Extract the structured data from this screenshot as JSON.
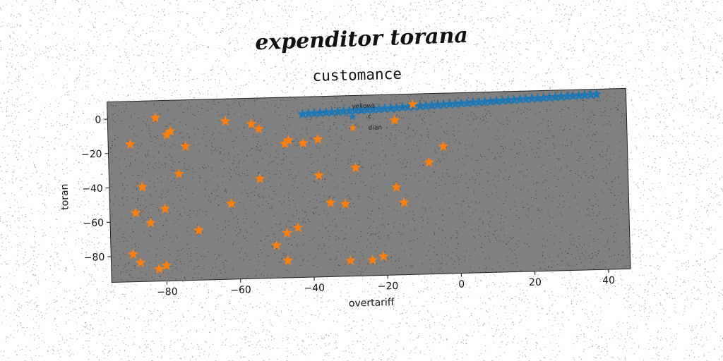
{
  "figure": {
    "suptitle": "expenditor torana"
  },
  "chart_data": {
    "type": "scatter",
    "title": "customance",
    "xlabel": "overtariff",
    "ylabel": "toran",
    "xlim": [
      -95,
      46
    ],
    "ylim": [
      -95,
      10
    ],
    "xticks": [
      -80,
      -60,
      -40,
      -20,
      0,
      20,
      40
    ],
    "yticks": [
      0,
      -20,
      -40,
      -60,
      -80
    ],
    "grid": false,
    "background": "#808080",
    "legend": {
      "title": "yellows",
      "placement": "top-center"
    },
    "series": [
      {
        "name": "c",
        "marker": "star",
        "color": "#1f77b4",
        "x": [
          -42.0,
          -40.4,
          -38.8,
          -37.2,
          -35.6,
          -34.0,
          -32.4,
          -30.8,
          -29.2,
          -27.6,
          -26.0,
          -24.4,
          -22.8,
          -21.2,
          -19.6,
          -18.0,
          -16.4,
          -14.8,
          -13.2,
          -11.6,
          -10.0,
          -8.4,
          -6.8,
          -5.2,
          -3.6,
          -2.0,
          -0.4,
          1.2,
          2.8,
          4.4,
          6.0,
          7.6,
          9.2,
          10.8,
          12.4,
          14.0,
          15.6,
          17.2,
          18.8,
          20.4,
          22.0,
          23.6,
          25.2,
          26.8,
          28.4,
          30.0,
          31.6,
          33.2,
          34.8,
          36.4,
          38.0
        ],
        "y": [
          0.0,
          0.1,
          0.3,
          0.4,
          0.6,
          0.7,
          0.8,
          1.0,
          1.1,
          1.3,
          1.4,
          1.5,
          1.7,
          1.8,
          2.0,
          2.1,
          2.2,
          2.4,
          2.5,
          2.7,
          2.8,
          2.9,
          3.1,
          3.2,
          3.4,
          3.5,
          3.6,
          3.8,
          3.9,
          4.1,
          4.2,
          4.3,
          4.5,
          4.6,
          4.8,
          4.9,
          5.0,
          5.2,
          5.3,
          5.5,
          5.6,
          5.7,
          5.9,
          6.0,
          6.2,
          6.3,
          6.4,
          6.6,
          6.7,
          6.9,
          7.0
        ]
      },
      {
        "name": "dian",
        "marker": "star",
        "color": "#ff7f0e",
        "x": [
          -82,
          -89,
          -79,
          -78,
          -74,
          -76,
          -63,
          -56,
          -54,
          -46,
          -47,
          -42,
          -38,
          -38,
          -28,
          -35,
          -31,
          -17,
          -12,
          -8,
          -4,
          -17,
          -15,
          -86,
          -88,
          -80,
          -84,
          -62,
          -54,
          -71,
          -47,
          -44,
          -50,
          -47,
          -89,
          -87,
          -80,
          -82,
          -30,
          -24,
          -21
        ],
        "y": [
          0,
          -15,
          -10,
          -8,
          -17,
          -33,
          -3,
          -5,
          -8,
          -15,
          -17,
          -17,
          -15,
          -36,
          -32,
          -52,
          -53,
          -44,
          4,
          -30,
          -21,
          -5,
          -53,
          -40,
          -55,
          -53,
          -61,
          -51,
          -37,
          -66,
          -69,
          -66,
          -76,
          -85,
          -79,
          -84,
          -86,
          -88,
          -86,
          -86,
          -84
        ]
      }
    ]
  }
}
